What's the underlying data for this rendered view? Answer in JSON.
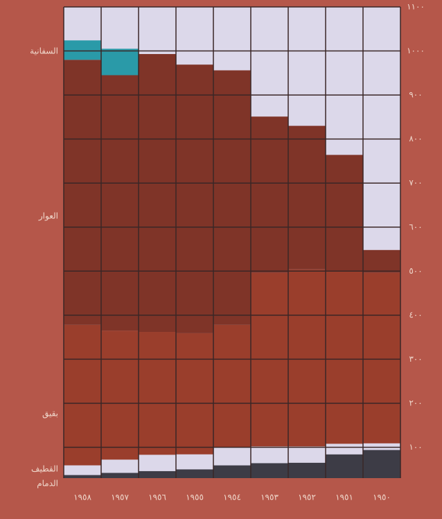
{
  "chart_data": {
    "type": "stacked_bar",
    "categories": [
      "١٩٥٨",
      "١٩٥٧",
      "١٩٥٦",
      "١٩٥٥",
      "١٩٥٤",
      "١٩٥٣",
      "١٩٥٢",
      "١٩٥١",
      "١٩٥٠"
    ],
    "series": [
      {
        "name": "الدمام",
        "color": "#3d3c46",
        "values": [
          37,
          42,
          46,
          50,
          59,
          64,
          65,
          84,
          94
        ]
      },
      {
        "name": "القطيف",
        "color": "#dcd8ea",
        "values": [
          22,
          30,
          37,
          34,
          41,
          38,
          37,
          24,
          15
        ]
      },
      {
        "name": "بقيق",
        "color": "#9a3e2c",
        "values": [
          319,
          293,
          279,
          275,
          278,
          394,
          402,
          393,
          387
        ]
      },
      {
        "name": "العوار",
        "color": "#7f3428",
        "values": [
          602,
          580,
          631,
          610,
          578,
          355,
          326,
          263,
          52
        ]
      },
      {
        "name": "السفانية",
        "color": "#2a9aa8",
        "values": [
          44,
          60,
          0,
          0,
          0,
          0,
          0,
          0,
          0
        ]
      }
    ],
    "ylim": [
      30,
      1100
    ],
    "yticks": [
      {
        "value": 100,
        "label": "١٠٠"
      },
      {
        "value": 200,
        "label": "٢٠٠"
      },
      {
        "value": 300,
        "label": "٣٠٠"
      },
      {
        "value": 400,
        "label": "٤٠٠"
      },
      {
        "value": 500,
        "label": "٥٠٠"
      },
      {
        "value": 600,
        "label": "٦٠٠"
      },
      {
        "value": 700,
        "label": "٧٠٠"
      },
      {
        "value": 800,
        "label": "٨٠٠"
      },
      {
        "value": 900,
        "label": "٩٠٠"
      },
      {
        "value": 1000,
        "label": "١٠٠٠"
      },
      {
        "value": 1100,
        "label": "١١٠٠"
      }
    ],
    "grid": true
  }
}
